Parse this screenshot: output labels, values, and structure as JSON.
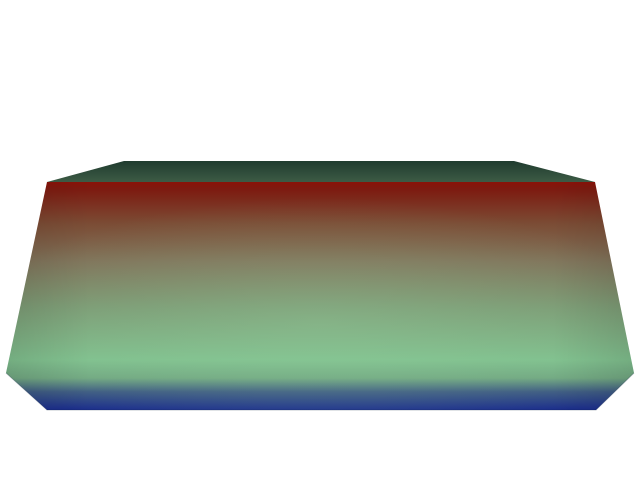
{
  "scene": {
    "background_color": "#ffffff",
    "object": "colored-octagonal-prism-slab",
    "colormap": {
      "top_face": [
        "#1f3b2e",
        "#3d5b45"
      ],
      "front_face_stops": [
        {
          "offset": 0.0,
          "color": "#8a1208"
        },
        {
          "offset": 0.03,
          "color": "#7d1a10"
        },
        {
          "offset": 0.18,
          "color": "#7b4b34"
        },
        {
          "offset": 0.35,
          "color": "#80735a"
        },
        {
          "offset": 0.55,
          "color": "#7c9a74"
        },
        {
          "offset": 0.78,
          "color": "#80c08e"
        },
        {
          "offset": 0.86,
          "color": "#72a882"
        },
        {
          "offset": 0.92,
          "color": "#3e5b83"
        },
        {
          "offset": 1.0,
          "color": "#1a2c8c"
        }
      ],
      "edge_shade": "#0d1f3a"
    }
  }
}
